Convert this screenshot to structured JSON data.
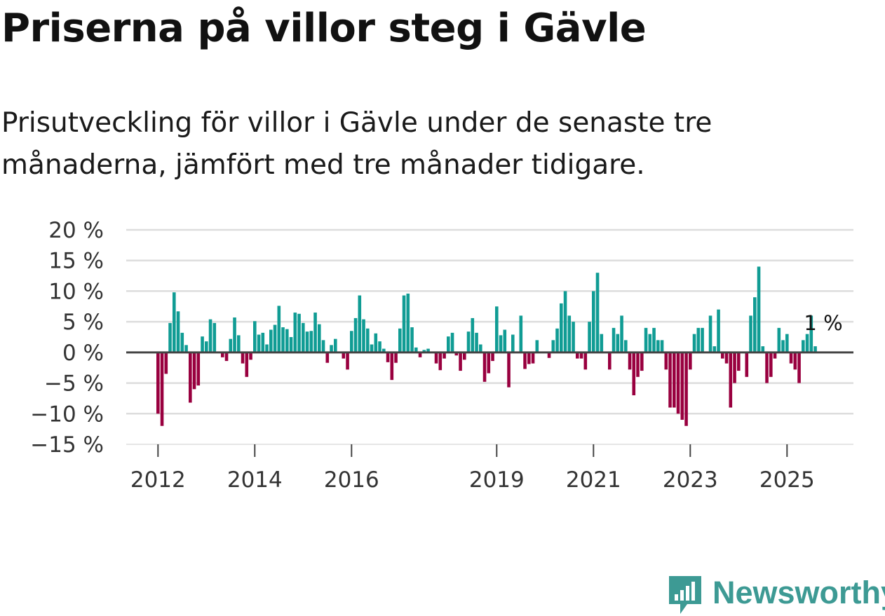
{
  "title": "Priserna på villor steg i Gävle",
  "subtitle": "Prisutveckling för villor i Gävle under de senaste tre månaderna, jämfört med tre månader tidigare.",
  "brand": {
    "name": "Newsworthy",
    "icon": "newsworthy-logo-icon",
    "color": "#3d9a94"
  },
  "colors": {
    "positive": "#109c94",
    "negative": "#99003f",
    "grid": "#dddddd",
    "zero_line": "#444444"
  },
  "chart_data": {
    "type": "bar",
    "title": "Priserna på villor steg i Gävle",
    "xlabel": "",
    "ylabel": "",
    "ylim": [
      -15,
      20
    ],
    "yticks": [
      20,
      15,
      10,
      5,
      0,
      -5,
      -10,
      -15
    ],
    "ytick_labels": [
      "20 %",
      "15 %",
      "10 %",
      "5 %",
      "0 %",
      "−5 %",
      "−10 %",
      "−15 %"
    ],
    "xticks": [
      {
        "label": "2012",
        "index": 0
      },
      {
        "label": "2014",
        "index": 24
      },
      {
        "label": "2016",
        "index": 48
      },
      {
        "label": "2019",
        "index": 84
      },
      {
        "label": "2021",
        "index": 108
      },
      {
        "label": "2023",
        "index": 132
      },
      {
        "label": "2025",
        "index": 156
      }
    ],
    "start": "2012-01",
    "annotation": {
      "text": "1 %",
      "index": 165
    },
    "values": [
      -10,
      -12,
      -3.5,
      4.8,
      9.8,
      6.7,
      3.2,
      1.2,
      -8.2,
      -6,
      -5.4,
      2.6,
      1.8,
      5.4,
      4.8,
      0,
      -0.8,
      -1.4,
      2.2,
      5.7,
      2.8,
      -1.8,
      -4,
      -1.2,
      5.1,
      2.9,
      3.2,
      1.3,
      3.7,
      4.5,
      7.6,
      4.1,
      3.8,
      2.5,
      6.5,
      6.3,
      4.8,
      3.4,
      3.5,
      6.5,
      4.6,
      2,
      -1.7,
      1.2,
      2.2,
      0,
      -1,
      -2.8,
      3.5,
      5.6,
      9.3,
      5.4,
      3.9,
      1.3,
      3.1,
      1.8,
      0.6,
      -1.6,
      -4.5,
      -1.7,
      3.9,
      9.3,
      9.6,
      4.1,
      0.8,
      -0.8,
      0.4,
      0.6,
      0,
      -1.8,
      -2.9,
      -1,
      2.6,
      3.2,
      -0.5,
      -3,
      -1.2,
      3.4,
      5.6,
      3.2,
      1.3,
      -4.8,
      -3.4,
      -1.4,
      7.5,
      2.8,
      3.7,
      -5.7,
      2.9,
      0,
      6,
      -2.7,
      -1.9,
      -1.8,
      2,
      0,
      0,
      -0.9,
      2,
      3.9,
      8,
      10,
      6,
      5,
      -1,
      -1,
      -2.8,
      5,
      10,
      13,
      3,
      0,
      -2.8,
      4,
      3,
      6,
      2,
      -2.8,
      -7,
      -4,
      -3,
      4,
      3,
      4,
      2,
      2,
      -2.8,
      -9,
      -9,
      -10,
      -11,
      -12,
      -2.8,
      3,
      4,
      4,
      0,
      6,
      1,
      7,
      -1,
      -1.8,
      -9,
      -5,
      -3,
      0,
      -4,
      6,
      9,
      14,
      1,
      -5,
      -4,
      -1,
      4,
      2,
      3,
      -1.8,
      -2.8,
      -5,
      2,
      3,
      6,
      1
    ]
  }
}
